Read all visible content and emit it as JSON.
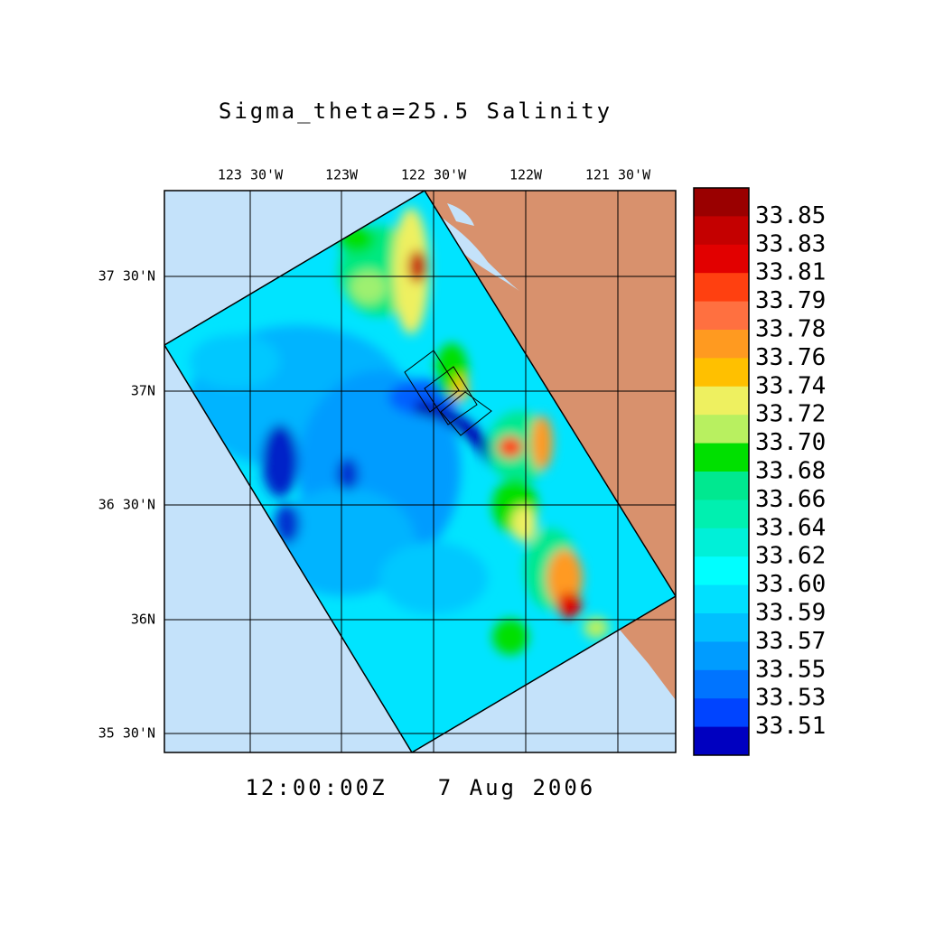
{
  "title": "Sigma_theta=25.5 Salinity",
  "map": {
    "lon_labels": [
      "123 30'W",
      "123W",
      "122 30'W",
      "122W",
      "121 30'W"
    ],
    "lat_labels": [
      "37 30'N",
      "37N",
      "36 30'N",
      "36N",
      "35 30'N"
    ]
  },
  "colorbar": {
    "colors": [
      "#9a0000",
      "#c40000",
      "#e20000",
      "#ff4010",
      "#ff7040",
      "#ff9a20",
      "#ffc000",
      "#eef060",
      "#b8f060",
      "#00e000",
      "#00e890",
      "#00f0b0",
      "#00f0d8",
      "#00ffff",
      "#00e0ff",
      "#00c0ff",
      "#009cff",
      "#0074ff",
      "#0044ff",
      "#0000c0"
    ],
    "labels": [
      "33.85",
      "33.83",
      "33.81",
      "33.79",
      "33.78",
      "33.76",
      "33.74",
      "33.72",
      "33.70",
      "33.68",
      "33.66",
      "33.64",
      "33.62",
      "33.60",
      "33.59",
      "33.57",
      "33.55",
      "33.53",
      "33.51"
    ]
  },
  "timestamp": {
    "time": "12:00:00Z",
    "date": "7 Aug 2006"
  }
}
